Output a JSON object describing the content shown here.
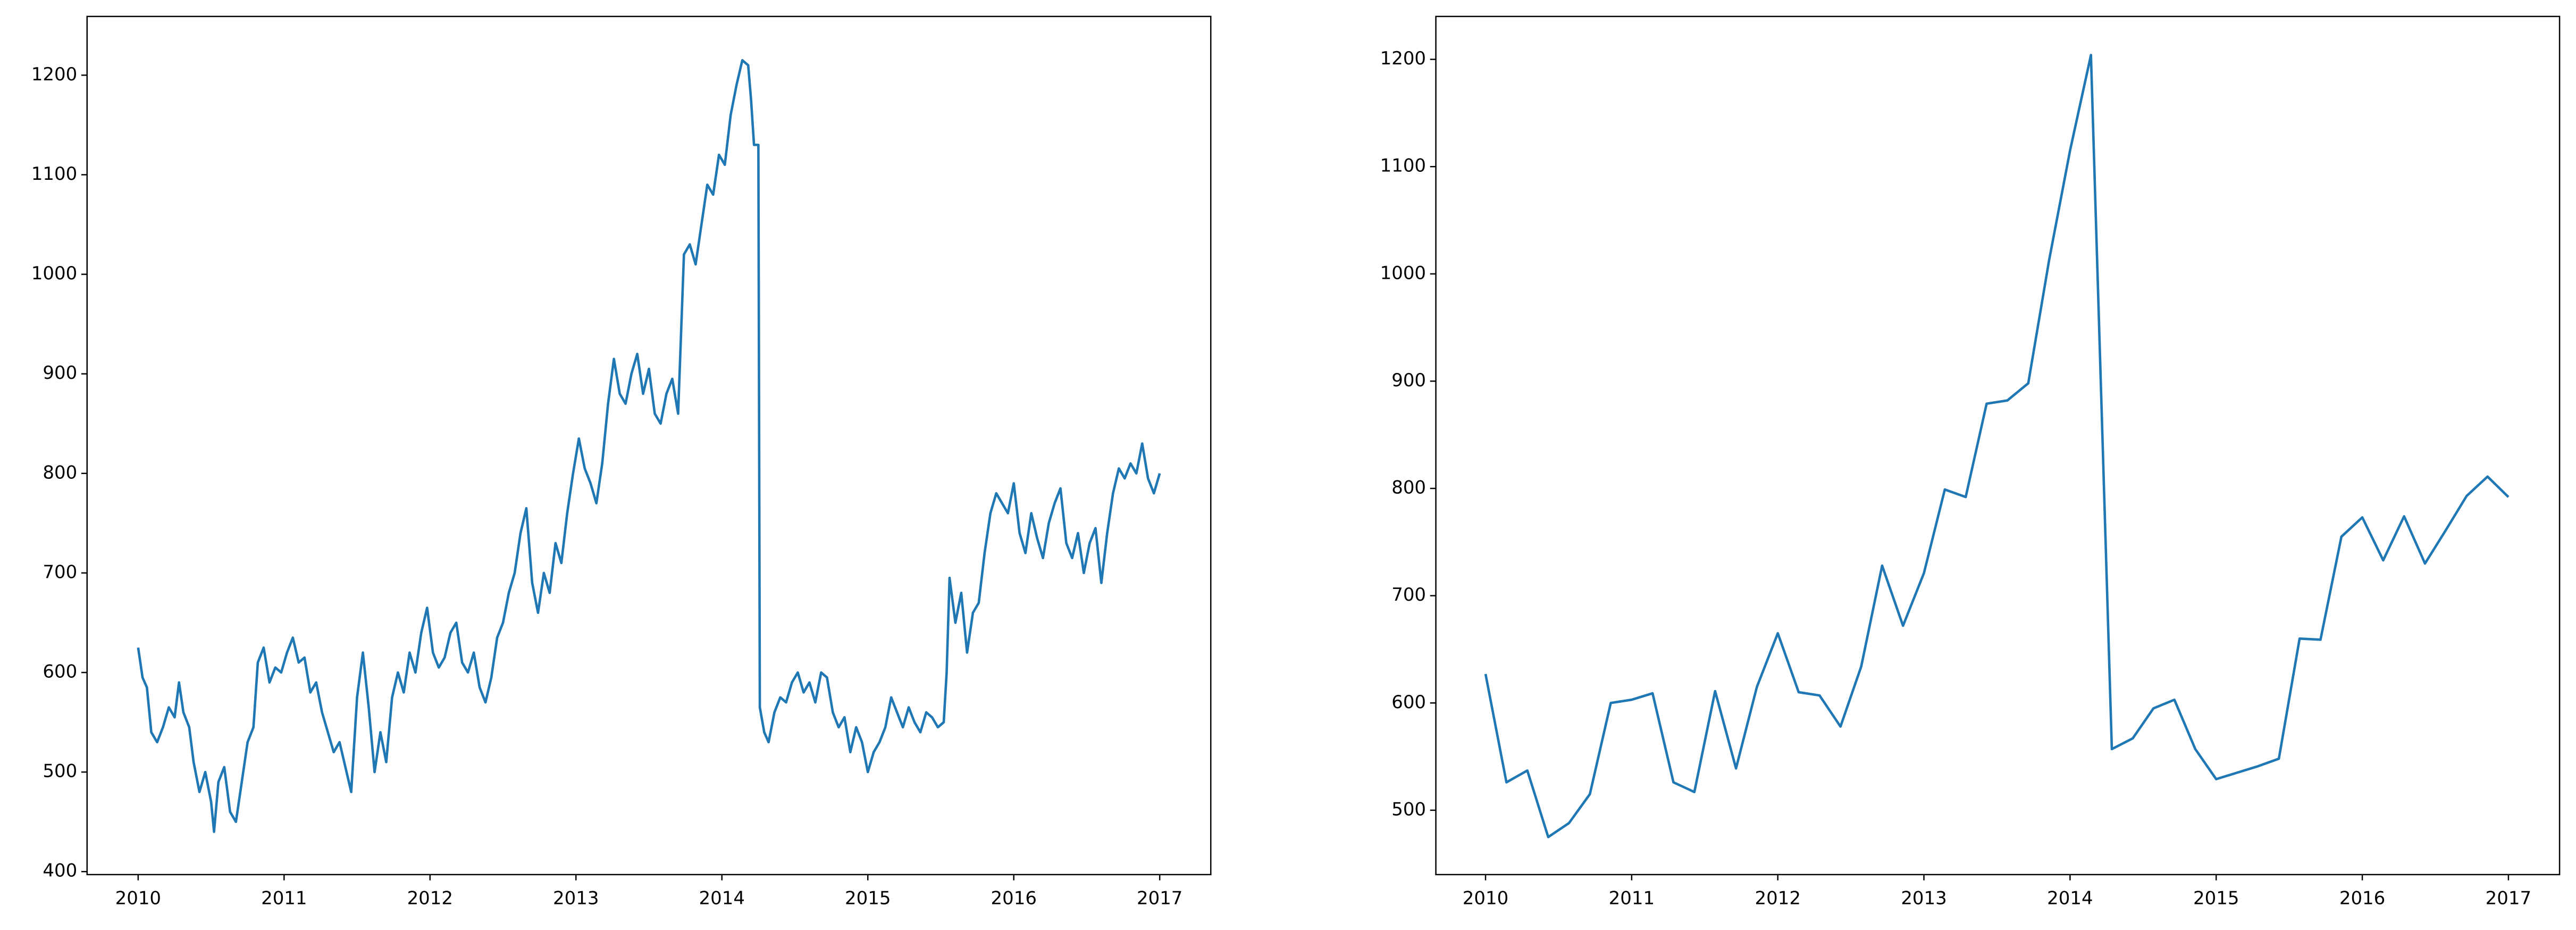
{
  "chart_data": [
    {
      "type": "line",
      "color": "#1f77b4",
      "xlim": [
        2009.65,
        2017.35
      ],
      "ylim": [
        397,
        1259
      ],
      "xticks": [
        2010,
        2011,
        2012,
        2013,
        2014,
        2015,
        2016,
        2017
      ],
      "yticks": [
        400,
        500,
        600,
        700,
        800,
        900,
        1000,
        1100,
        1200
      ],
      "x": [
        2010.0,
        2010.03,
        2010.06,
        2010.09,
        2010.13,
        2010.17,
        2010.21,
        2010.25,
        2010.28,
        2010.31,
        2010.35,
        2010.38,
        2010.42,
        2010.46,
        2010.5,
        2010.52,
        2010.55,
        2010.59,
        2010.63,
        2010.67,
        2010.71,
        2010.75,
        2010.79,
        2010.82,
        2010.86,
        2010.9,
        2010.94,
        2010.98,
        2011.02,
        2011.06,
        2011.1,
        2011.14,
        2011.18,
        2011.22,
        2011.26,
        2011.3,
        2011.34,
        2011.38,
        2011.42,
        2011.46,
        2011.5,
        2011.54,
        2011.58,
        2011.62,
        2011.66,
        2011.7,
        2011.74,
        2011.78,
        2011.82,
        2011.86,
        2011.9,
        2011.94,
        2011.98,
        2012.02,
        2012.06,
        2012.1,
        2012.14,
        2012.18,
        2012.22,
        2012.26,
        2012.3,
        2012.34,
        2012.38,
        2012.42,
        2012.46,
        2012.5,
        2012.54,
        2012.58,
        2012.62,
        2012.66,
        2012.7,
        2012.74,
        2012.78,
        2012.82,
        2012.86,
        2012.9,
        2012.94,
        2012.98,
        2013.02,
        2013.06,
        2013.1,
        2013.14,
        2013.18,
        2013.22,
        2013.26,
        2013.3,
        2013.34,
        2013.38,
        2013.42,
        2013.46,
        2013.5,
        2013.54,
        2013.58,
        2013.62,
        2013.66,
        2013.7,
        2013.74,
        2013.78,
        2013.82,
        2013.86,
        2013.9,
        2013.94,
        2013.98,
        2014.02,
        2014.06,
        2014.1,
        2014.14,
        2014.18,
        2014.2,
        2014.22,
        2014.25,
        2014.26,
        2014.29,
        2014.32,
        2014.36,
        2014.4,
        2014.44,
        2014.48,
        2014.52,
        2014.56,
        2014.6,
        2014.64,
        2014.68,
        2014.72,
        2014.76,
        2014.8,
        2014.84,
        2014.88,
        2014.92,
        2014.96,
        2015.0,
        2015.04,
        2015.08,
        2015.12,
        2015.16,
        2015.2,
        2015.24,
        2015.28,
        2015.32,
        2015.36,
        2015.4,
        2015.44,
        2015.48,
        2015.52,
        2015.54,
        2015.56,
        2015.6,
        2015.64,
        2015.68,
        2015.72,
        2015.76,
        2015.8,
        2015.84,
        2015.88,
        2015.92,
        2015.96,
        2016.0,
        2016.04,
        2016.08,
        2016.12,
        2016.16,
        2016.2,
        2016.24,
        2016.28,
        2016.32,
        2016.36,
        2016.4,
        2016.44,
        2016.48,
        2016.52,
        2016.56,
        2016.6,
        2016.64,
        2016.68,
        2016.72,
        2016.76,
        2016.8,
        2016.84,
        2016.88,
        2016.92,
        2016.96,
        2017.0
      ],
      "values": [
        625,
        595,
        585,
        540,
        530,
        545,
        565,
        555,
        590,
        560,
        545,
        510,
        480,
        500,
        470,
        440,
        490,
        505,
        460,
        450,
        490,
        530,
        545,
        610,
        625,
        590,
        605,
        600,
        620,
        635,
        610,
        615,
        580,
        590,
        560,
        540,
        520,
        530,
        505,
        480,
        575,
        620,
        565,
        500,
        540,
        510,
        575,
        600,
        580,
        620,
        600,
        640,
        665,
        620,
        605,
        615,
        640,
        650,
        610,
        600,
        620,
        585,
        570,
        595,
        635,
        650,
        680,
        700,
        740,
        765,
        690,
        660,
        700,
        680,
        730,
        710,
        760,
        800,
        835,
        805,
        790,
        770,
        810,
        870,
        915,
        880,
        870,
        900,
        920,
        880,
        905,
        860,
        850,
        880,
        895,
        860,
        1020,
        1030,
        1010,
        1050,
        1090,
        1080,
        1120,
        1110,
        1160,
        1190,
        1215,
        1210,
        1175,
        1130,
        1130,
        565,
        540,
        530,
        560,
        575,
        570,
        590,
        600,
        580,
        590,
        570,
        600,
        595,
        560,
        545,
        555,
        520,
        545,
        530,
        500,
        520,
        530,
        545,
        575,
        560,
        545,
        565,
        550,
        540,
        560,
        555,
        545,
        550,
        600,
        695,
        650,
        680,
        620,
        660,
        670,
        720,
        760,
        780,
        770,
        760,
        790,
        740,
        720,
        760,
        735,
        715,
        750,
        770,
        785,
        730,
        715,
        740,
        700,
        730,
        745,
        690,
        740,
        780,
        805,
        795,
        810,
        800,
        830,
        795,
        780,
        800
      ]
    },
    {
      "type": "line",
      "color": "#1f77b4",
      "xlim": [
        2009.66,
        2017.35
      ],
      "ylim": [
        440,
        1240
      ],
      "xticks": [
        2010,
        2011,
        2012,
        2013,
        2014,
        2015,
        2016,
        2017
      ],
      "yticks": [
        500,
        600,
        700,
        800,
        900,
        1000,
        1100,
        1200
      ],
      "x": [
        2010.0,
        2010.143,
        2010.286,
        2010.429,
        2010.571,
        2010.714,
        2010.857,
        2011.0,
        2011.143,
        2011.286,
        2011.429,
        2011.571,
        2011.714,
        2011.857,
        2012.0,
        2012.143,
        2012.286,
        2012.429,
        2012.571,
        2012.714,
        2012.857,
        2013.0,
        2013.143,
        2013.286,
        2013.429,
        2013.571,
        2013.714,
        2013.857,
        2014.0,
        2014.143,
        2014.286,
        2014.429,
        2014.571,
        2014.714,
        2014.857,
        2015.0,
        2015.143,
        2015.286,
        2015.429,
        2015.571,
        2015.714,
        2015.857,
        2016.0,
        2016.143,
        2016.286,
        2016.429,
        2016.571,
        2016.714,
        2016.857,
        2017.0
      ],
      "values": [
        627,
        526,
        537,
        475,
        488,
        515,
        600,
        603,
        609,
        526,
        517,
        611,
        539,
        615,
        665,
        610,
        607,
        578,
        634,
        728,
        672,
        721,
        799,
        792,
        879,
        882,
        898,
        1013,
        1115,
        1204,
        557,
        567,
        595,
        603,
        557,
        529,
        535,
        541,
        548,
        660,
        659,
        755,
        773,
        733,
        774,
        730,
        761,
        793,
        811,
        792
      ]
    }
  ]
}
